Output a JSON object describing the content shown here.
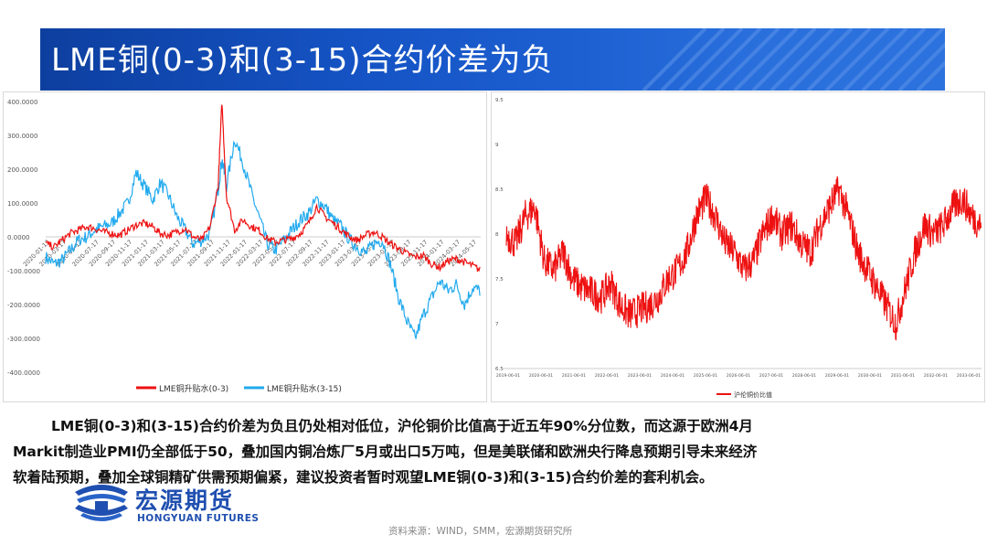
{
  "title": "LME铜(0-3)和(3-15)合约价差为负",
  "colors": {
    "red": "#ee1111",
    "blue": "#22aaee",
    "banner": "#1553c4",
    "brand": "#1f4fb0"
  },
  "chart_data": [
    {
      "type": "line",
      "title": "",
      "ylim": [
        -400,
        400
      ],
      "yticks": [
        "400.0000",
        "300.0000",
        "200.0000",
        "100.0000",
        "0.0000",
        "-100.0000",
        "-200.0000",
        "-300.0000",
        "-400.0000"
      ],
      "ytick_values": [
        400,
        300,
        200,
        100,
        0,
        -100,
        -200,
        -300,
        -400
      ],
      "xticks": [
        "2020-01-17",
        "2020-03-17",
        "2020-05-17",
        "2020-07-17",
        "2020-09-17",
        "2020-11-17",
        "2021-01-17",
        "2021-03-17",
        "2021-05-17",
        "2021-07-17",
        "2021-09-17",
        "2021-11-17",
        "2022-01-17",
        "2022-03-17",
        "2022-05-17",
        "2022-07-17",
        "2022-09-17",
        "2022-11-17",
        "2023-01-17",
        "2023-03-17",
        "2023-05-17",
        "2023-07-17",
        "2023-09-17",
        "2023-11-17",
        "2024-01-17",
        "2024-03-17",
        "2024-05-17"
      ],
      "xrange": [
        "2020-01-01",
        "2024-05-31"
      ],
      "legend_position": "bottom",
      "series": [
        {
          "name": "LME铜升贴水(0-3)",
          "color": "#ee1111",
          "x": [
            "2020-01-01",
            "2020-02-01",
            "2020-03-01",
            "2020-04-01",
            "2020-05-01",
            "2020-06-01",
            "2020-07-01",
            "2020-08-01",
            "2020-09-01",
            "2020-10-01",
            "2020-11-01",
            "2020-12-01",
            "2021-01-01",
            "2021-02-01",
            "2021-03-01",
            "2021-04-01",
            "2021-05-01",
            "2021-06-01",
            "2021-07-01",
            "2021-08-01",
            "2021-09-01",
            "2021-10-01",
            "2021-10-15",
            "2021-11-01",
            "2021-12-01",
            "2022-01-01",
            "2022-02-01",
            "2022-03-01",
            "2022-04-01",
            "2022-05-01",
            "2022-06-01",
            "2022-07-01",
            "2022-08-01",
            "2022-09-01",
            "2022-10-01",
            "2022-11-01",
            "2022-12-01",
            "2023-01-01",
            "2023-02-01",
            "2023-03-01",
            "2023-04-01",
            "2023-05-01",
            "2023-06-01",
            "2023-07-01",
            "2023-08-01",
            "2023-09-01",
            "2023-10-01",
            "2023-11-01",
            "2023-12-01",
            "2024-01-01",
            "2024-02-01",
            "2024-03-01",
            "2024-04-01",
            "2024-05-01",
            "2024-05-31"
          ],
          "values": [
            -20,
            -30,
            -10,
            10,
            20,
            30,
            25,
            15,
            10,
            5,
            20,
            35,
            40,
            30,
            10,
            5,
            15,
            25,
            0,
            -10,
            30,
            150,
            400,
            120,
            20,
            50,
            30,
            20,
            -5,
            -15,
            -10,
            -5,
            10,
            40,
            90,
            60,
            40,
            20,
            0,
            -10,
            5,
            15,
            0,
            -20,
            -35,
            -50,
            -60,
            -55,
            -80,
            -90,
            -70,
            -65,
            -75,
            -85,
            -100
          ]
        },
        {
          "name": "LME铜升贴水(3-15)",
          "color": "#22aaee",
          "x": [
            "2020-01-01",
            "2020-02-01",
            "2020-03-01",
            "2020-04-01",
            "2020-05-01",
            "2020-06-01",
            "2020-07-01",
            "2020-08-01",
            "2020-09-01",
            "2020-10-01",
            "2020-11-01",
            "2020-12-01",
            "2021-01-01",
            "2021-02-01",
            "2021-03-01",
            "2021-04-01",
            "2021-05-01",
            "2021-06-01",
            "2021-07-01",
            "2021-08-01",
            "2021-09-01",
            "2021-10-01",
            "2021-10-15",
            "2021-11-01",
            "2021-12-01",
            "2022-01-01",
            "2022-02-01",
            "2022-03-01",
            "2022-04-01",
            "2022-05-01",
            "2022-06-01",
            "2022-07-01",
            "2022-08-01",
            "2022-09-01",
            "2022-10-01",
            "2022-11-01",
            "2022-12-01",
            "2023-01-01",
            "2023-02-01",
            "2023-03-01",
            "2023-04-01",
            "2023-05-01",
            "2023-06-01",
            "2023-07-01",
            "2023-08-01",
            "2023-09-01",
            "2023-10-01",
            "2023-11-01",
            "2023-12-01",
            "2024-01-01",
            "2024-02-01",
            "2024-03-01",
            "2024-04-01",
            "2024-05-01",
            "2024-05-31"
          ],
          "values": [
            -60,
            -80,
            -70,
            -40,
            -10,
            0,
            20,
            30,
            40,
            70,
            100,
            190,
            150,
            110,
            160,
            120,
            60,
            20,
            -20,
            -10,
            10,
            140,
            230,
            150,
            290,
            220,
            130,
            60,
            -20,
            -40,
            -10,
            20,
            50,
            70,
            110,
            90,
            50,
            30,
            -10,
            -30,
            -50,
            -20,
            -10,
            -80,
            -180,
            -250,
            -300,
            -230,
            -180,
            -130,
            -160,
            -140,
            -200,
            -150,
            -160
          ]
        }
      ]
    },
    {
      "type": "line",
      "title": "",
      "ylim": [
        6.5,
        9.5
      ],
      "yticks": [
        "9.5",
        "9",
        "8.5",
        "8",
        "7.5",
        "7",
        "6.5"
      ],
      "ytick_values": [
        9.5,
        9,
        8.5,
        8,
        7.5,
        7,
        6.5
      ],
      "xticks": [
        "2019-06-01",
        "2020-06-01",
        "2021-06-01",
        "2022-06-01",
        "2023-06-01",
        "2024-06-01",
        "2025-06-01",
        "2026-06-01",
        "2027-06-01",
        "2028-06-01",
        "2029-06-01",
        "2030-06-01",
        "2031-06-01",
        "2032-06-01",
        "2033-06-01"
      ],
      "legend_position": "bottom",
      "series": [
        {
          "name": "沪伦铜价比值",
          "color": "#ee1111",
          "x": [
            0,
            0.02,
            0.04,
            0.06,
            0.08,
            0.1,
            0.12,
            0.14,
            0.16,
            0.18,
            0.2,
            0.22,
            0.24,
            0.26,
            0.28,
            0.3,
            0.32,
            0.34,
            0.36,
            0.38,
            0.4,
            0.42,
            0.44,
            0.46,
            0.48,
            0.5,
            0.52,
            0.54,
            0.56,
            0.58,
            0.6,
            0.62,
            0.64,
            0.66,
            0.68,
            0.7,
            0.72,
            0.74,
            0.76,
            0.78,
            0.8,
            0.82,
            0.84,
            0.86,
            0.88,
            0.9,
            0.92,
            0.94,
            0.96,
            0.98,
            1.0
          ],
          "values": [
            8.0,
            7.9,
            8.2,
            8.3,
            7.7,
            7.6,
            7.8,
            7.5,
            7.4,
            7.35,
            7.3,
            7.45,
            7.2,
            7.1,
            7.15,
            7.2,
            7.3,
            7.5,
            7.6,
            7.8,
            8.2,
            8.4,
            8.2,
            7.9,
            7.8,
            7.6,
            7.7,
            8.0,
            8.2,
            8.0,
            8.1,
            7.9,
            7.8,
            8.1,
            8.3,
            8.5,
            8.2,
            7.8,
            7.6,
            7.4,
            7.2,
            7.0,
            7.4,
            7.8,
            8.1,
            8.0,
            8.1,
            8.3,
            8.4,
            8.2,
            8.1
          ]
        }
      ]
    }
  ],
  "body": {
    "line1": "LME铜(0-3)和(3-15)合约价差为负且仍处相对低位，沪伦铜价比值高于近五年90%分位数，而这源于欧洲4月",
    "line2": "Markit制造业PMI仍全部低于50，叠加国内铜冶炼厂5月或出口5万吨，但是美联储和欧洲央行降息预期引导未来经济",
    "line3": "软着陆预期，叠加全球铜精矿供需预期偏紧，建议投资者暂时观望LME铜(0-3)和(3-15)合约价差的套利机会。"
  },
  "logo": {
    "cn": "宏源期货",
    "en": "HONGYUAN FUTURES",
    "icon": "hongyuan-logo-icon"
  },
  "source": "资料来源：WIND，SMM，宏源期货研究所"
}
